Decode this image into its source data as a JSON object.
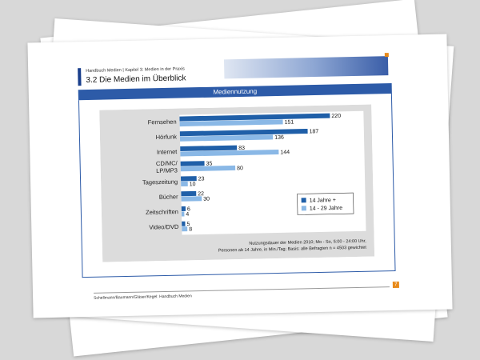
{
  "header": {
    "breadcrumb": "Handbuch Medien | Kapitel 3: Medien in der Praxis",
    "title": "3.2  Die Medien im Überblick"
  },
  "band_title": "Mediennutzung",
  "footer": {
    "credit": "Schellmann/Baumann/Gläser/Kegel: Handbuch Medien",
    "page_number": "7"
  },
  "colors": {
    "brand_blue": "#2d5ba8",
    "dark_bar": "#1f5fa8",
    "light_bar": "#8ab8e6",
    "panel": "#dcdcdc",
    "accent": "#e88a1a"
  },
  "chart_data": {
    "type": "bar",
    "orientation": "horizontal",
    "categories": [
      "Fernsehen",
      "Hörfunk",
      "Internet",
      "CD/MC/\nLP/MP3",
      "Tageszeitung",
      "Bücher",
      "Zeitschriften",
      "Video/DVD"
    ],
    "series": [
      {
        "name": "14 Jahre +",
        "values": [
          220,
          187,
          83,
          35,
          23,
          22,
          6,
          5
        ]
      },
      {
        "name": "14 - 29 Jahre",
        "values": [
          151,
          136,
          144,
          80,
          10,
          30,
          4,
          8
        ]
      }
    ],
    "xlim": [
      0,
      240
    ],
    "legend_position": "bottom-right",
    "note_line1": "Nutzungsdauer der Medien 2010; Mo - So, 5:00 - 24:00 Uhr,",
    "note_line2": "Personen ab 14 Jahre, in Min./Tag; Basis: alle Befragten n = 4503 gewichtet"
  }
}
